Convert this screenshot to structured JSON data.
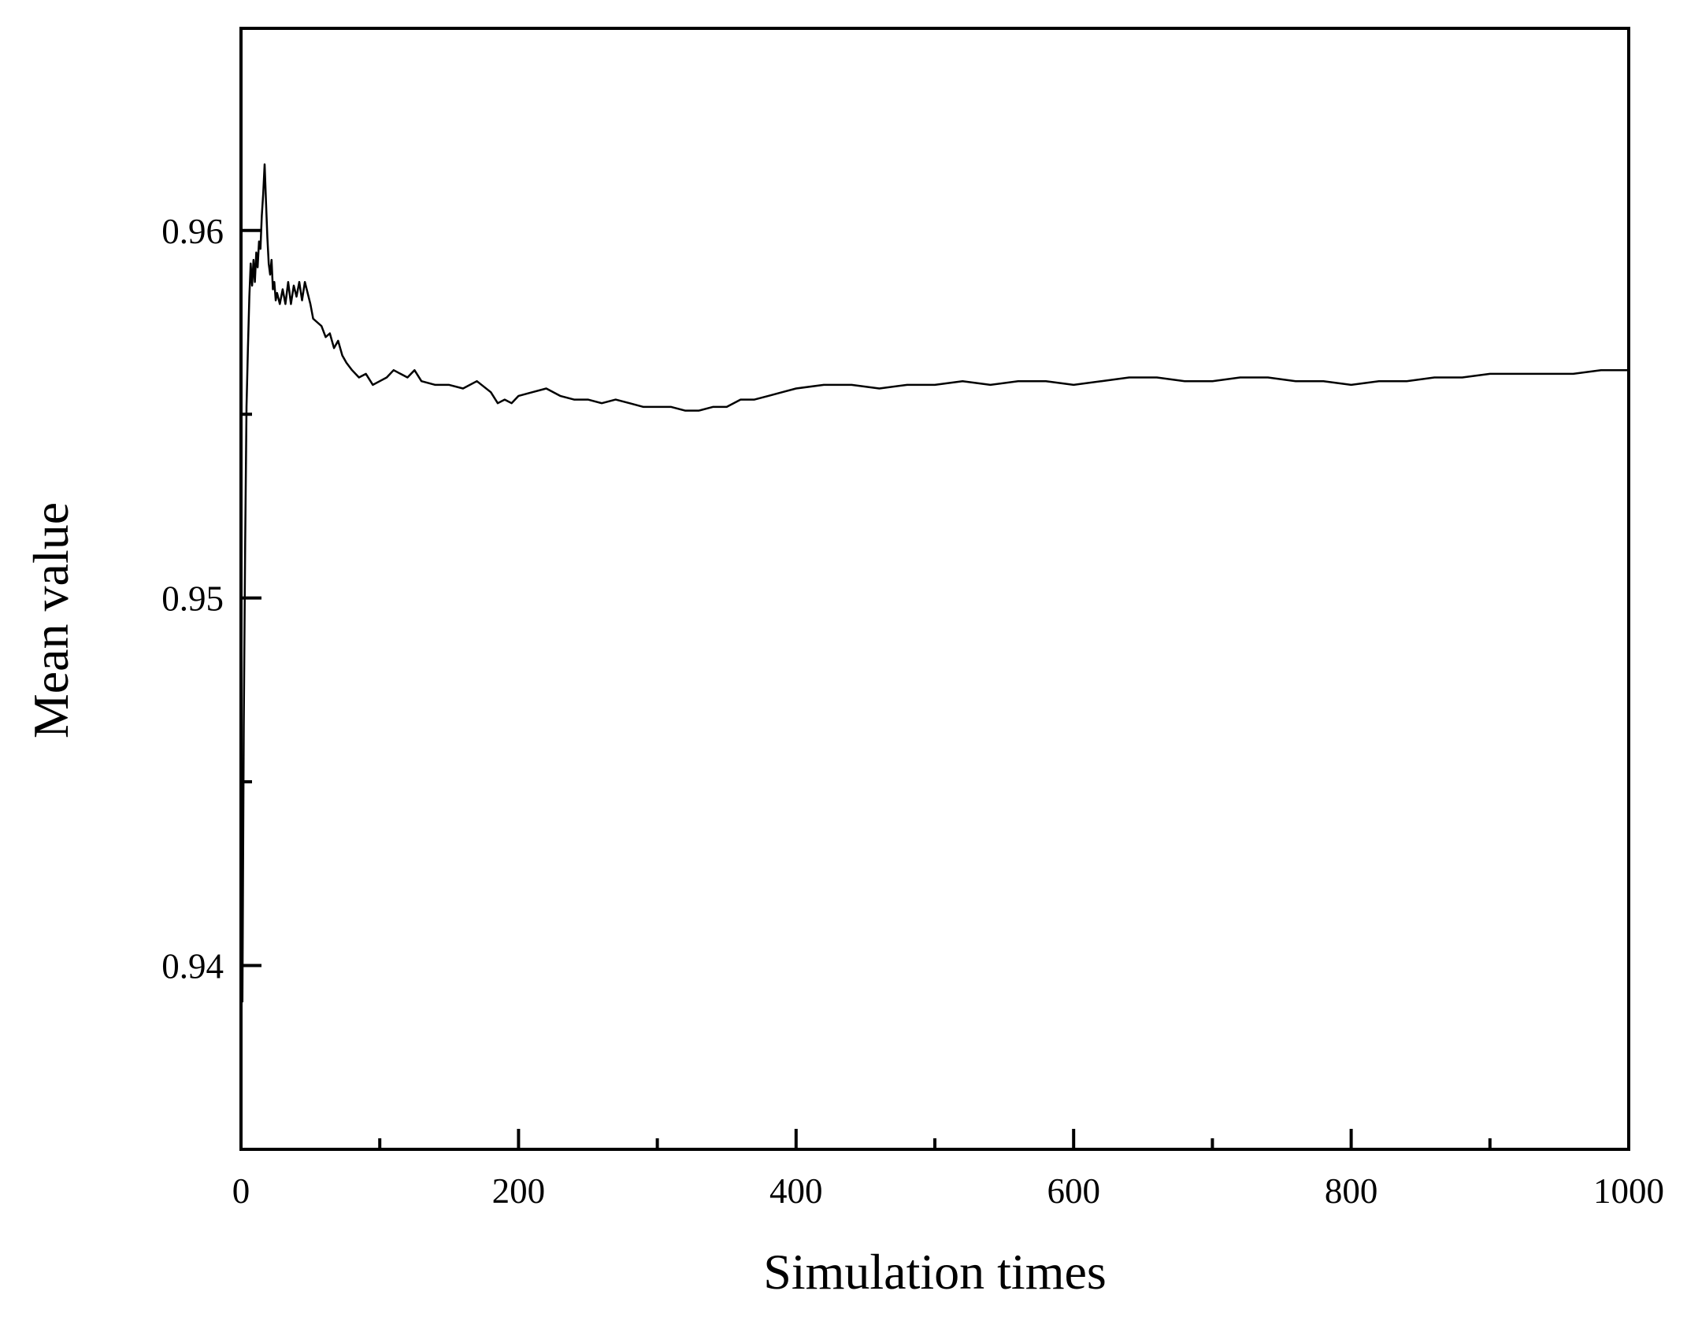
{
  "chart_data": {
    "type": "line",
    "title": "",
    "xlabel": "Simulation times",
    "ylabel": "Mean value",
    "xlim": [
      0,
      1000
    ],
    "ylim": [
      0.935,
      0.9655
    ],
    "x_ticks": [
      0,
      200,
      400,
      600,
      800,
      1000
    ],
    "x_tick_labels": [
      "0",
      "200",
      "400",
      "600",
      "800",
      "1000"
    ],
    "x_minor_ticks": [
      100,
      300,
      500,
      700,
      900
    ],
    "y_ticks": [
      0.94,
      0.95,
      0.96
    ],
    "y_tick_labels": [
      "0.94",
      "0.95",
      "0.96"
    ],
    "y_minor_ticks": [
      0.945,
      0.955
    ],
    "grid": false,
    "legend": "none",
    "series": [
      {
        "color": "#000000",
        "x": [
          1,
          2,
          3,
          4,
          5,
          6,
          7,
          8,
          9,
          10,
          11,
          12,
          13,
          14,
          15,
          16,
          17,
          18,
          19,
          20,
          21,
          22,
          23,
          24,
          25,
          26,
          28,
          30,
          32,
          34,
          36,
          38,
          40,
          42,
          44,
          46,
          48,
          50,
          52,
          55,
          58,
          61,
          64,
          67,
          70,
          73,
          76,
          80,
          85,
          90,
          95,
          100,
          105,
          110,
          115,
          120,
          125,
          130,
          140,
          150,
          160,
          170,
          180,
          185,
          190,
          195,
          200,
          210,
          220,
          230,
          240,
          250,
          260,
          270,
          280,
          290,
          300,
          310,
          320,
          330,
          340,
          350,
          360,
          370,
          380,
          390,
          400,
          420,
          440,
          460,
          480,
          500,
          520,
          540,
          560,
          580,
          600,
          620,
          640,
          660,
          680,
          700,
          720,
          740,
          760,
          780,
          800,
          820,
          840,
          860,
          880,
          900,
          920,
          940,
          960,
          980,
          1000
        ],
        "y": [
          0.939,
          0.9465,
          0.9515,
          0.9552,
          0.9568,
          0.9582,
          0.9591,
          0.9585,
          0.9592,
          0.9586,
          0.9594,
          0.959,
          0.9597,
          0.9595,
          0.9604,
          0.961,
          0.9618,
          0.9608,
          0.9598,
          0.9591,
          0.9588,
          0.9592,
          0.9584,
          0.9586,
          0.9581,
          0.9583,
          0.958,
          0.9584,
          0.958,
          0.9586,
          0.958,
          0.9585,
          0.9582,
          0.9586,
          0.9581,
          0.9586,
          0.9583,
          0.958,
          0.9576,
          0.9575,
          0.9574,
          0.9571,
          0.9572,
          0.9568,
          0.957,
          0.9566,
          0.9564,
          0.9562,
          0.956,
          0.9561,
          0.9558,
          0.9559,
          0.956,
          0.9562,
          0.9561,
          0.956,
          0.9562,
          0.9559,
          0.9558,
          0.9558,
          0.9557,
          0.9559,
          0.9556,
          0.9553,
          0.9554,
          0.9553,
          0.9555,
          0.9556,
          0.9557,
          0.9555,
          0.9554,
          0.9554,
          0.9553,
          0.9554,
          0.9553,
          0.9552,
          0.9552,
          0.9552,
          0.9551,
          0.9551,
          0.9552,
          0.9552,
          0.9554,
          0.9554,
          0.9555,
          0.9556,
          0.9557,
          0.9558,
          0.9558,
          0.9557,
          0.9558,
          0.9558,
          0.9559,
          0.9558,
          0.9559,
          0.9559,
          0.9558,
          0.9559,
          0.956,
          0.956,
          0.9559,
          0.9559,
          0.956,
          0.956,
          0.9559,
          0.9559,
          0.9558,
          0.9559,
          0.9559,
          0.956,
          0.956,
          0.9561,
          0.9561,
          0.9561,
          0.9561,
          0.9562,
          0.9562
        ]
      }
    ]
  }
}
